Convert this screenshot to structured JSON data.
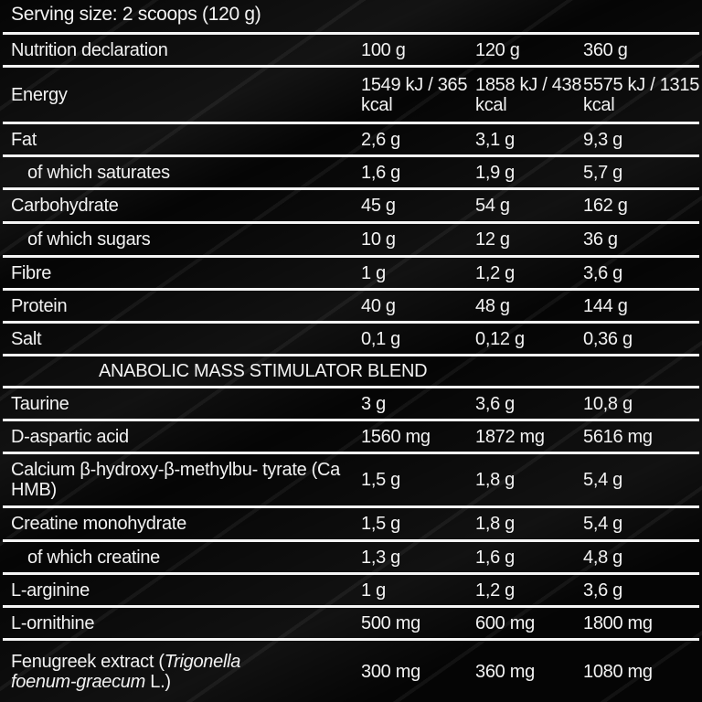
{
  "serving_size": "Serving size: 2 scoops (120 g)",
  "header": {
    "label": "Nutrition declaration",
    "cols": [
      "100 g",
      "120 g",
      "360 g"
    ]
  },
  "rows": [
    {
      "label": "Energy",
      "sub": false,
      "values": [
        "1549 kJ / 365 kcal",
        "1858 kJ / 438 kcal",
        "5575 kJ / 1315 kcal"
      ]
    },
    {
      "label": "Fat",
      "sub": false,
      "values": [
        "2,6 g",
        "3,1 g",
        "9,3 g"
      ]
    },
    {
      "label": "of which saturates",
      "sub": true,
      "values": [
        "1,6 g",
        "1,9 g",
        "5,7 g"
      ]
    },
    {
      "label": "Carbohydrate",
      "sub": false,
      "values": [
        "45 g",
        "54 g",
        "162 g"
      ]
    },
    {
      "label": "of which sugars",
      "sub": true,
      "values": [
        "10 g",
        "12 g",
        "36 g"
      ]
    },
    {
      "label": "Fibre",
      "sub": false,
      "values": [
        "1 g",
        "1,2 g",
        "3,6 g"
      ]
    },
    {
      "label": "Protein",
      "sub": false,
      "values": [
        "40 g",
        "48 g",
        "144 g"
      ]
    },
    {
      "label": "Salt",
      "sub": false,
      "values": [
        "0,1 g",
        "0,12 g",
        "0,36 g"
      ]
    }
  ],
  "blend_heading": "ANABOLIC MASS STIMULATOR BLEND",
  "blend_rows": [
    {
      "label": "Taurine",
      "sub": false,
      "values": [
        "3 g",
        "3,6 g",
        "10,8 g"
      ]
    },
    {
      "label": "D-aspartic acid",
      "sub": false,
      "values": [
        "1560 mg",
        "1872 mg",
        "5616 mg"
      ]
    },
    {
      "label": "Calcium β-hydroxy-β-methylbu- tyrate (Ca HMB)",
      "sub": false,
      "values": [
        "1,5 g",
        "1,8 g",
        "5,4 g"
      ]
    },
    {
      "label": "Creatine monohydrate",
      "sub": false,
      "values": [
        "1,5 g",
        "1,8 g",
        "5,4 g"
      ]
    },
    {
      "label": "of which creatine",
      "sub": true,
      "values": [
        "1,3 g",
        "1,6 g",
        "4,8 g"
      ]
    },
    {
      "label": "L-arginine",
      "sub": false,
      "values": [
        "1 g",
        "1,2 g",
        "3,6 g"
      ]
    },
    {
      "label": "L-ornithine",
      "sub": false,
      "values": [
        "500 mg",
        "600 mg",
        "1800 mg"
      ]
    }
  ],
  "fenugreek": {
    "label_prefix": "Fenugreek extract (",
    "label_italic_1": "Trigonella",
    "label_italic_2": "foenum-graecum",
    "label_suffix": " L.)",
    "values": [
      "300 mg",
      "360 mg",
      "1080 mg"
    ]
  }
}
